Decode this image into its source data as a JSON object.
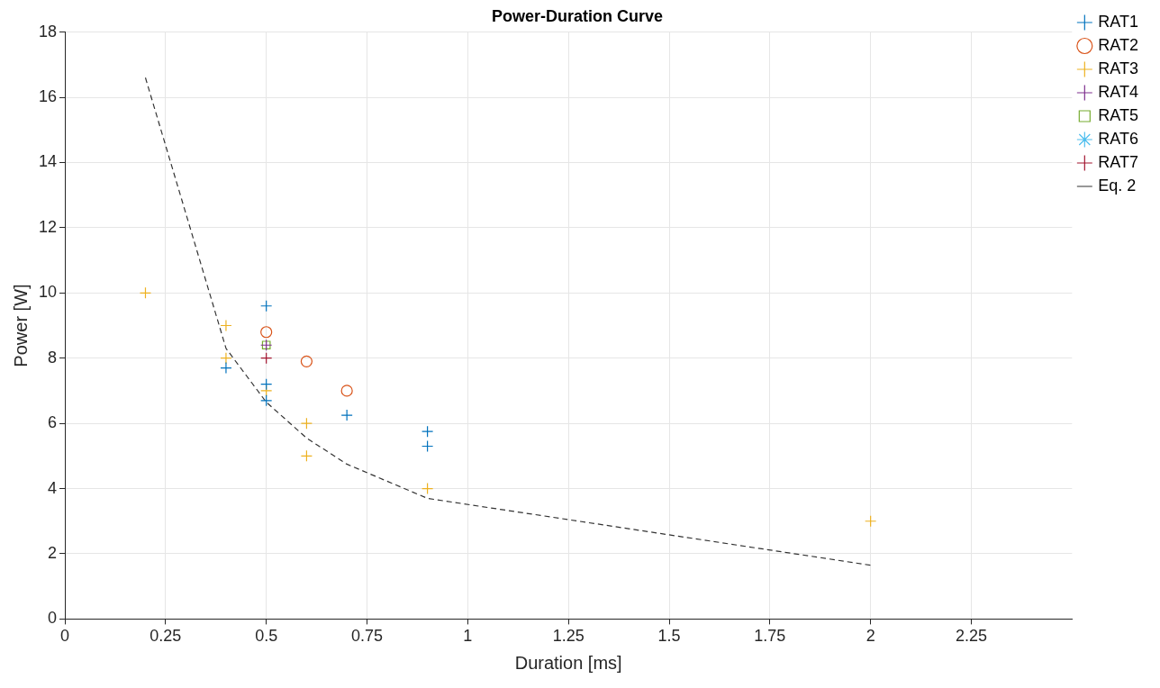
{
  "chart_data": {
    "type": "scatter",
    "title": "Power-Duration Curve",
    "xlabel": "Duration [ms]",
    "ylabel": "Power [W]",
    "xlim": [
      0,
      2.5
    ],
    "xticks": [
      0,
      0.25,
      0.5,
      0.75,
      1,
      1.25,
      1.5,
      1.75,
      2,
      2.25
    ],
    "ylim": [
      0,
      18
    ],
    "yticks": [
      0,
      2,
      4,
      6,
      8,
      10,
      12,
      14,
      16,
      18
    ],
    "grid": true,
    "legend": "top right",
    "series": [
      {
        "name": "RAT1",
        "color": "#0072bd",
        "marker": "cross",
        "x": [
          0.4,
          0.5,
          0.5,
          0.5,
          0.7,
          0.9,
          0.9
        ],
        "values": [
          7.7,
          9.6,
          7.2,
          6.7,
          6.25,
          5.75,
          5.3
        ]
      },
      {
        "name": "RAT2",
        "color": "#d95319",
        "marker": "circle",
        "x": [
          0.5,
          0.6,
          0.7
        ],
        "values": [
          8.8,
          7.9,
          7.0
        ]
      },
      {
        "name": "RAT3",
        "color": "#edb120",
        "marker": "cross",
        "x": [
          0.2,
          0.4,
          0.4,
          0.5,
          0.6,
          0.6,
          0.9,
          2
        ],
        "values": [
          10,
          9,
          8,
          7,
          6,
          5,
          4,
          3
        ]
      },
      {
        "name": "RAT4",
        "color": "#7e2f8e",
        "marker": "cross",
        "x": [
          0.5
        ],
        "values": [
          8.4
        ]
      },
      {
        "name": "RAT5",
        "color": "#77ac30",
        "marker": "square",
        "x": [
          0.5
        ],
        "values": [
          8.4
        ]
      },
      {
        "name": "RAT6",
        "color": "#4dbeee",
        "marker": "star"
      },
      {
        "name": "RAT7",
        "color": "#a2142f",
        "marker": "cross",
        "x": [
          0.5
        ],
        "values": [
          8
        ]
      },
      {
        "name": "Eq. 2",
        "type": "line",
        "color": "#333333",
        "line_style": "dashed",
        "marker": "none",
        "x": [
          0.2,
          0.4,
          0.5,
          0.6,
          0.7,
          0.9,
          2
        ],
        "values": [
          16.6,
          8.3,
          6.65,
          5.55,
          4.75,
          3.7,
          1.65
        ]
      }
    ]
  }
}
